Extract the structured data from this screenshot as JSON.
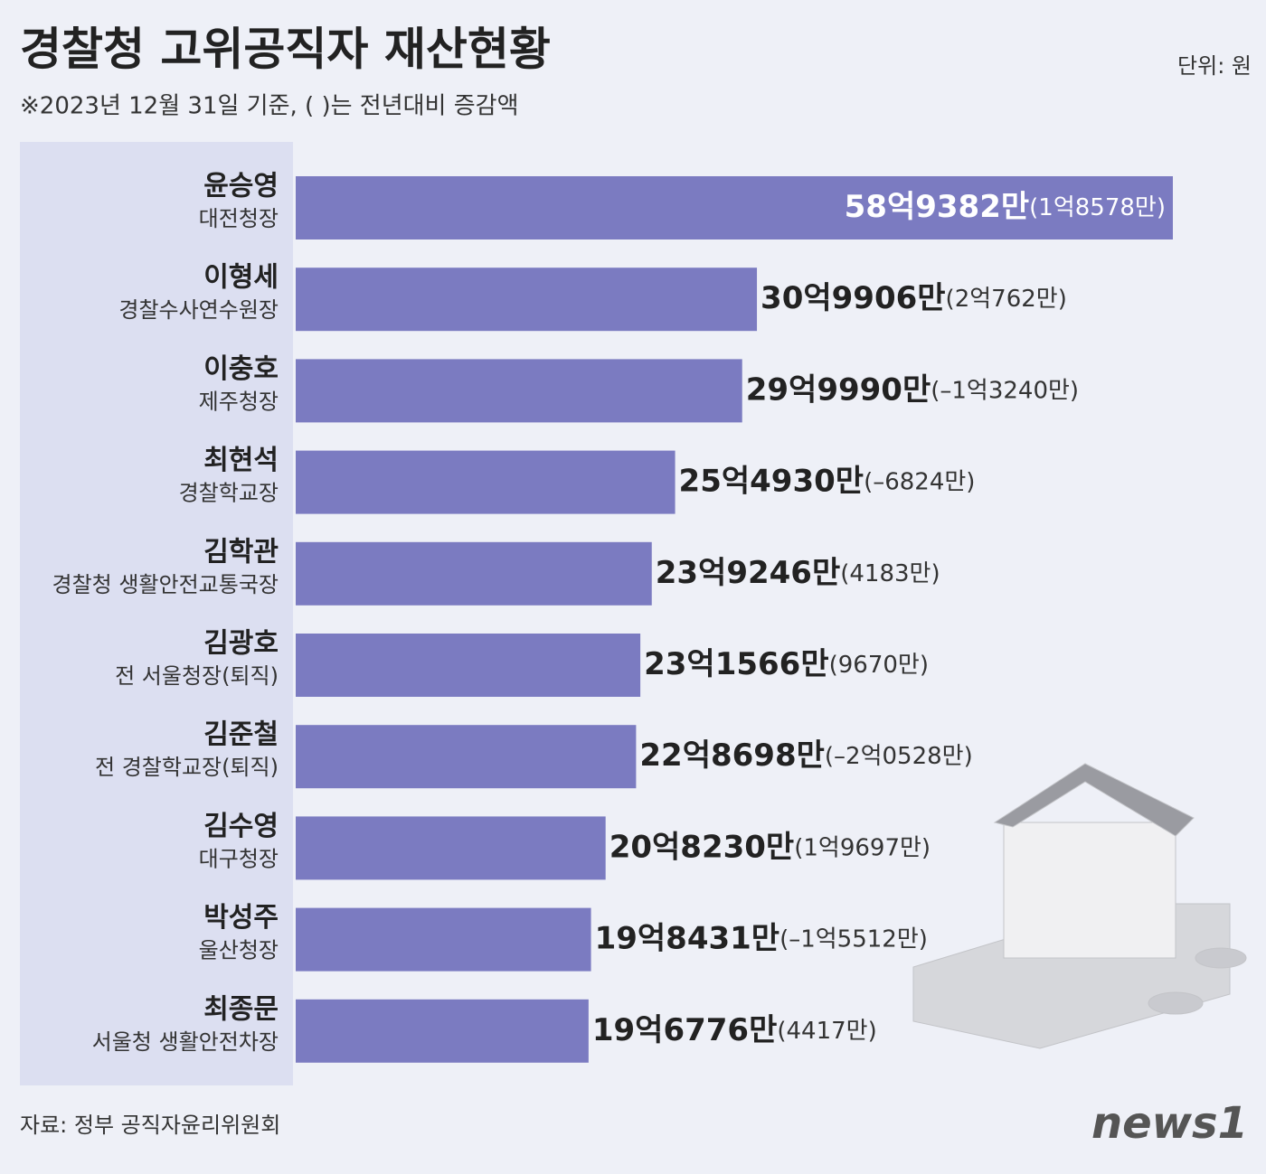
{
  "chart_data": {
    "type": "bar",
    "orientation": "horizontal",
    "title": "경찰청 고위공직자 재산현황",
    "subtitle": "※2023년 12월 31일 기준, ( )는 전년대비 증감액",
    "unit": "단위: 원",
    "source": "자료: 정부 공직자윤리위원회",
    "logo": "news1",
    "color": "#7b7bc1",
    "categories": [
      "윤승영",
      "이형세",
      "이충호",
      "최현석",
      "김학관",
      "김광호",
      "김준철",
      "김수영",
      "박성주",
      "최종문"
    ],
    "positions": [
      "대전청장",
      "경찰수사연수원장",
      "제주청장",
      "경찰학교장",
      "경찰청 생활안전교통국장",
      "전 서울청장(퇴직)",
      "전 경찰학교장(퇴직)",
      "대구청장",
      "울산청장",
      "서울청 생활안전차장"
    ],
    "values": [
      5893820000,
      3099060000,
      2999900000,
      2549300000,
      2392460000,
      2315660000,
      2286980000,
      2082300000,
      1984310000,
      1967760000
    ],
    "value_labels": [
      "58억9382만",
      "30억9906만",
      "29억9990만",
      "25억4930만",
      "23억9246만",
      "23억1566만",
      "22억8698만",
      "20억8230만",
      "19억8431만",
      "19억6776만"
    ],
    "changes": [
      185780000,
      207620000,
      -132400000,
      -68240000,
      41830000,
      96700000,
      -205280000,
      196970000,
      -155120000,
      44170000
    ],
    "change_labels": [
      "(1억8578만)",
      "(2억762만)",
      "(–1억3240만)",
      "(–6824만)",
      "(4183만)",
      "(9670만)",
      "(–2억0528만)",
      "(1억9697만)",
      "(–1억5512만)",
      "(4417만)"
    ]
  }
}
